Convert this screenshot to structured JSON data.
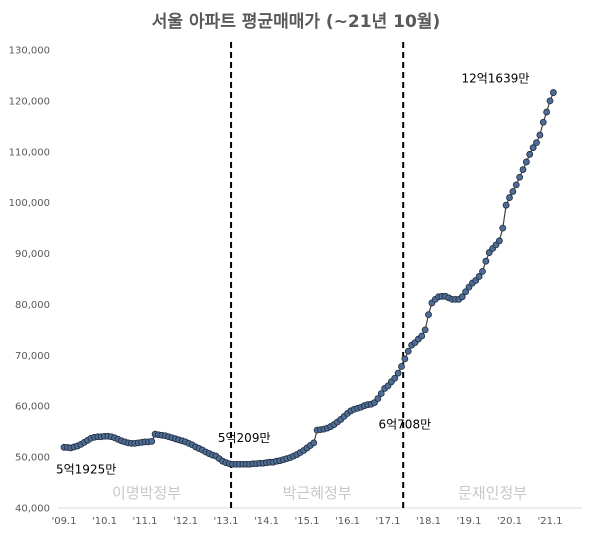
{
  "chart_data": {
    "type": "line",
    "title": "서울 아파트 평균매매가 (~21년 10월)",
    "xlabel": "",
    "ylabel": "",
    "ylim": [
      40000,
      130000
    ],
    "ytick_values": [
      40000,
      50000,
      60000,
      70000,
      80000,
      90000,
      100000,
      110000,
      120000,
      130000
    ],
    "ytick_labels": [
      "40,000",
      "50,000",
      "60,000",
      "70,000",
      "80,000",
      "90,000",
      "100,000",
      "110,000",
      "120,000",
      "130,000"
    ],
    "xtick_labels": [
      "'09.1",
      "'10.1",
      "'11.1",
      "'12.1",
      "'13.1",
      "'14.1",
      "'15.1",
      "'16.1",
      "'17.1",
      "'18.1",
      "'19.1",
      "'20.1",
      "'21.1"
    ],
    "grid": false,
    "legend": "none",
    "line_color": "#404040",
    "marker_color": "#4f6d94",
    "series": [
      {
        "values": [
          51925,
          51900,
          51800,
          52000,
          52200,
          52500,
          52900,
          53300,
          53700,
          53900,
          54000,
          54000,
          54100,
          54100,
          54000,
          53800,
          53500,
          53200,
          53000,
          52800,
          52700,
          52700,
          52800,
          52900,
          53000,
          53000,
          53100,
          54500,
          54400,
          54300,
          54200,
          54000,
          53800,
          53600,
          53400,
          53200,
          53000,
          52700,
          52400,
          52000,
          51700,
          51400,
          51000,
          50700,
          50400,
          50209,
          49700,
          49200,
          48900,
          48700,
          48600,
          48600,
          48600,
          48600,
          48600,
          48600,
          48700,
          48700,
          48800,
          48800,
          48900,
          49000,
          49000,
          49200,
          49300,
          49500,
          49700,
          49900,
          50200,
          50500,
          50900,
          51300,
          51800,
          52300,
          52800,
          55300,
          55400,
          55500,
          55700,
          56000,
          56400,
          56900,
          57400,
          58000,
          58600,
          59100,
          59400,
          59600,
          59800,
          60100,
          60300,
          60400,
          60708,
          61500,
          62500,
          63500,
          64000,
          64800,
          65500,
          66500,
          67800,
          69300,
          70800,
          72000,
          72500,
          73200,
          73800,
          75000,
          78000,
          80300,
          81000,
          81500,
          81600,
          81600,
          81300,
          81000,
          81000,
          81000,
          81500,
          82500,
          83400,
          84200,
          84700,
          85500,
          86500,
          88500,
          90200,
          91000,
          91700,
          92500,
          95000,
          99500,
          101000,
          102200,
          103500,
          105000,
          106500,
          108000,
          109500,
          110800,
          111800,
          113300,
          115800,
          117800,
          120000,
          121639
        ]
      }
    ],
    "value_labels": [
      {
        "index": 0,
        "text": "5억1925만"
      },
      {
        "index": 45,
        "text": "5억209만"
      },
      {
        "index": 92,
        "text": "6억708만"
      },
      {
        "index": 145,
        "text": "12억1639만"
      }
    ],
    "dividers": [
      {
        "after_month_index": 49,
        "style": "dashed"
      },
      {
        "after_month_index": 100,
        "style": "dashed"
      }
    ],
    "eras": [
      "이명박정부",
      "박근혜정부",
      "문재인정부"
    ]
  }
}
